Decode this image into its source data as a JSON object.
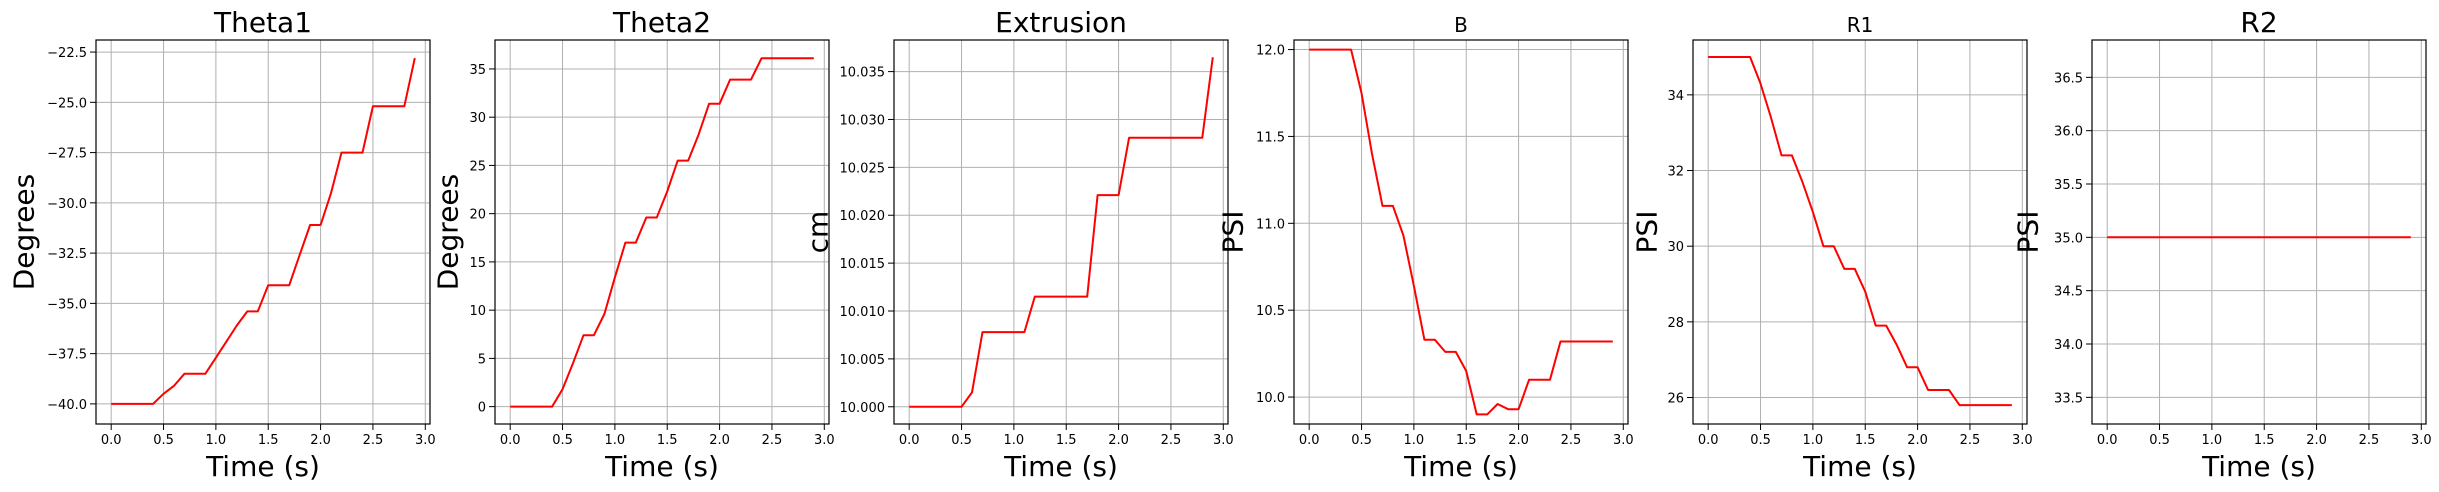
{
  "chart_data": [
    {
      "type": "line",
      "title": "Theta1",
      "xlabel": "Time (s)",
      "ylabel": "Degrees",
      "xlim": [
        -0.145,
        3.045
      ],
      "ylim": [
        -41.0,
        -21.9
      ],
      "xticks": [
        0.0,
        0.5,
        1.0,
        1.5,
        2.0,
        2.5,
        3.0
      ],
      "xtick_labels": [
        "0.0",
        "0.5",
        "1.0",
        "1.5",
        "2.0",
        "2.5",
        "3.0"
      ],
      "yticks": [
        -40.0,
        -37.5,
        -35.0,
        -32.5,
        -30.0,
        -27.5,
        -25.0,
        -22.5
      ],
      "ytick_labels": [
        "−40.0",
        "−37.5",
        "−35.0",
        "−32.5",
        "−30.0",
        "−27.5",
        "−25.0",
        "−22.5"
      ],
      "grid": true,
      "series": [
        {
          "color": "#ff0000",
          "x": [
            0.0,
            0.1,
            0.2,
            0.3,
            0.4,
            0.5,
            0.6,
            0.7,
            0.8,
            0.9,
            1.0,
            1.1,
            1.2,
            1.3,
            1.4,
            1.5,
            1.6,
            1.7,
            1.8,
            1.9,
            2.0,
            2.1,
            2.2,
            2.3,
            2.4,
            2.5,
            2.6,
            2.7,
            2.8,
            2.9
          ],
          "y": [
            -40.0,
            -40.0,
            -40.0,
            -40.0,
            -40.0,
            -39.5,
            -39.1,
            -38.5,
            -38.5,
            -38.5,
            -37.7,
            -36.9,
            -36.1,
            -35.4,
            -35.4,
            -34.1,
            -34.1,
            -34.1,
            -32.6,
            -31.1,
            -31.1,
            -29.5,
            -27.5,
            -27.5,
            -27.5,
            -25.2,
            -25.2,
            -25.2,
            -25.2,
            -22.8
          ]
        }
      ]
    },
    {
      "type": "line",
      "title": "Theta2",
      "xlabel": "Time (s)",
      "ylabel": "Degrees",
      "xlim": [
        -0.145,
        3.045
      ],
      "ylim": [
        -1.8,
        38.0
      ],
      "xticks": [
        0.0,
        0.5,
        1.0,
        1.5,
        2.0,
        2.5,
        3.0
      ],
      "xtick_labels": [
        "0.0",
        "0.5",
        "1.0",
        "1.5",
        "2.0",
        "2.5",
        "3.0"
      ],
      "yticks": [
        0,
        5,
        10,
        15,
        20,
        25,
        30,
        35
      ],
      "ytick_labels": [
        "0",
        "5",
        "10",
        "15",
        "20",
        "25",
        "30",
        "35"
      ],
      "grid": true,
      "series": [
        {
          "color": "#ff0000",
          "x": [
            0.0,
            0.1,
            0.2,
            0.3,
            0.4,
            0.5,
            0.6,
            0.7,
            0.8,
            0.9,
            1.0,
            1.1,
            1.2,
            1.3,
            1.4,
            1.5,
            1.6,
            1.7,
            1.8,
            1.9,
            2.0,
            2.1,
            2.2,
            2.3,
            2.4,
            2.5,
            2.6,
            2.7,
            2.8,
            2.9
          ],
          "y": [
            0.0,
            0.0,
            0.0,
            0.0,
            0.0,
            1.8,
            4.5,
            7.4,
            7.4,
            9.6,
            13.4,
            17.0,
            17.0,
            19.6,
            19.6,
            22.3,
            25.5,
            25.5,
            28.2,
            31.4,
            31.4,
            33.9,
            33.9,
            33.9,
            36.1,
            36.1,
            36.1,
            36.1,
            36.1,
            36.1
          ]
        }
      ]
    },
    {
      "type": "line",
      "title": "Extrusion",
      "xlabel": "Time (s)",
      "ylabel": "cm",
      "xlim": [
        -0.145,
        3.045
      ],
      "ylim": [
        9.9982,
        10.0383
      ],
      "xticks": [
        0.0,
        0.5,
        1.0,
        1.5,
        2.0,
        2.5,
        3.0
      ],
      "xtick_labels": [
        "0.0",
        "0.5",
        "1.0",
        "1.5",
        "2.0",
        "2.5",
        "3.0"
      ],
      "yticks": [
        10.0,
        10.005,
        10.01,
        10.015,
        10.02,
        10.025,
        10.03,
        10.035
      ],
      "ytick_labels": [
        "10.000",
        "10.005",
        "10.010",
        "10.015",
        "10.020",
        "10.025",
        "10.030",
        "10.035"
      ],
      "grid": true,
      "series": [
        {
          "color": "#ff0000",
          "x": [
            0.0,
            0.1,
            0.2,
            0.3,
            0.4,
            0.5,
            0.6,
            0.7,
            0.8,
            0.9,
            1.0,
            1.1,
            1.2,
            1.3,
            1.4,
            1.5,
            1.6,
            1.7,
            1.8,
            1.9,
            2.0,
            2.1,
            2.2,
            2.3,
            2.4,
            2.5,
            2.6,
            2.7,
            2.8,
            2.9
          ],
          "y": [
            10.0,
            10.0,
            10.0,
            10.0,
            10.0,
            10.0,
            10.0015,
            10.0078,
            10.0078,
            10.0078,
            10.0078,
            10.0078,
            10.0115,
            10.0115,
            10.0115,
            10.0115,
            10.0115,
            10.0115,
            10.0221,
            10.0221,
            10.0221,
            10.0281,
            10.0281,
            10.0281,
            10.0281,
            10.0281,
            10.0281,
            10.0281,
            10.0281,
            10.0365
          ]
        }
      ]
    },
    {
      "type": "line",
      "title": "B",
      "xlabel": "Time (s)",
      "ylabel": "PSI",
      "xlim": [
        -0.145,
        3.045
      ],
      "ylim": [
        9.845,
        12.055
      ],
      "xticks": [
        0.0,
        0.5,
        1.0,
        1.5,
        2.0,
        2.5,
        3.0
      ],
      "xtick_labels": [
        "0.0",
        "0.5",
        "1.0",
        "1.5",
        "2.0",
        "2.5",
        "3.0"
      ],
      "yticks": [
        10.0,
        10.5,
        11.0,
        11.5,
        12.0
      ],
      "ytick_labels": [
        "10.0",
        "10.5",
        "11.0",
        "11.5",
        "12.0"
      ],
      "grid": true,
      "series": [
        {
          "color": "#ff0000",
          "x": [
            0.0,
            0.1,
            0.2,
            0.3,
            0.4,
            0.5,
            0.6,
            0.7,
            0.8,
            0.9,
            1.0,
            1.1,
            1.2,
            1.3,
            1.4,
            1.5,
            1.6,
            1.7,
            1.8,
            1.9,
            2.0,
            2.1,
            2.2,
            2.3,
            2.4,
            2.5,
            2.6,
            2.7,
            2.8,
            2.9
          ],
          "y": [
            12.0,
            12.0,
            12.0,
            12.0,
            12.0,
            11.75,
            11.4,
            11.1,
            11.1,
            10.93,
            10.64,
            10.33,
            10.33,
            10.26,
            10.26,
            10.15,
            9.9,
            9.9,
            9.96,
            9.93,
            9.93,
            10.1,
            10.1,
            10.1,
            10.32,
            10.32,
            10.32,
            10.32,
            10.32,
            10.32
          ]
        }
      ]
    },
    {
      "type": "line",
      "title": "R1",
      "xlabel": "Time (s)",
      "ylabel": "PSI",
      "xlim": [
        -0.145,
        3.045
      ],
      "ylim": [
        25.3,
        35.45
      ],
      "xticks": [
        0.0,
        0.5,
        1.0,
        1.5,
        2.0,
        2.5,
        3.0
      ],
      "xtick_labels": [
        "0.0",
        "0.5",
        "1.0",
        "1.5",
        "2.0",
        "2.5",
        "3.0"
      ],
      "yticks": [
        26,
        28,
        30,
        32,
        34
      ],
      "ytick_labels": [
        "26",
        "28",
        "30",
        "32",
        "34"
      ],
      "grid": true,
      "series": [
        {
          "color": "#ff0000",
          "x": [
            0.0,
            0.1,
            0.2,
            0.3,
            0.4,
            0.5,
            0.6,
            0.7,
            0.8,
            0.9,
            1.0,
            1.1,
            1.2,
            1.3,
            1.4,
            1.5,
            1.6,
            1.7,
            1.8,
            1.9,
            2.0,
            2.1,
            2.2,
            2.3,
            2.4,
            2.5,
            2.6,
            2.7,
            2.8,
            2.9
          ],
          "y": [
            35.0,
            35.0,
            35.0,
            35.0,
            35.0,
            34.3,
            33.4,
            32.4,
            32.4,
            31.7,
            30.9,
            30.0,
            30.0,
            29.4,
            29.4,
            28.8,
            27.9,
            27.9,
            27.4,
            26.8,
            26.8,
            26.2,
            26.2,
            26.2,
            25.8,
            25.8,
            25.8,
            25.8,
            25.8,
            25.8
          ]
        }
      ]
    },
    {
      "type": "line",
      "title": "R2",
      "xlabel": "Time (s)",
      "ylabel": "PSI",
      "xlim": [
        -0.145,
        3.045
      ],
      "ylim": [
        33.25,
        36.85
      ],
      "xticks": [
        0.0,
        0.5,
        1.0,
        1.5,
        2.0,
        2.5,
        3.0
      ],
      "xtick_labels": [
        "0.0",
        "0.5",
        "1.0",
        "1.5",
        "2.0",
        "2.5",
        "3.0"
      ],
      "yticks": [
        33.5,
        34.0,
        34.5,
        35.0,
        35.5,
        36.0,
        36.5
      ],
      "ytick_labels": [
        "33.5",
        "34.0",
        "34.5",
        "35.0",
        "35.5",
        "36.0",
        "36.5"
      ],
      "grid": true,
      "series": [
        {
          "color": "#ff0000",
          "x": [
            0.0,
            2.9
          ],
          "y": [
            35.0,
            35.0
          ]
        }
      ]
    }
  ]
}
